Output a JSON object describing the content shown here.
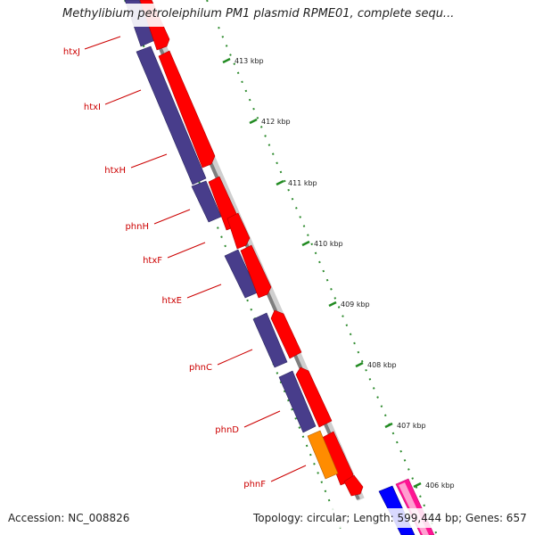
{
  "title": "Methylibium petroleiphilum PM1 plasmid RPME01, complete sequ...",
  "footer": {
    "accession": "Accession: NC_008826",
    "summary": "Topology: circular; Length: 599,444 bp; Genes: 657"
  },
  "colors": {
    "forward_cds": "#ff0000",
    "reverse_cds": "#483d8b",
    "orange_feature": "#ff8c00",
    "blue_feature": "#0000ff",
    "pink_feature": "#ff1493",
    "backbone": "#7f7f7f",
    "tick": "#228b22",
    "gene_label": "#cc0000"
  },
  "ruler": {
    "unit": "kbp",
    "ticks": [
      "413 kbp",
      "412 kbp",
      "411 kbp",
      "410 kbp",
      "409 kbp",
      "408 kbp",
      "407 kbp",
      "406 kbp"
    ]
  },
  "genes": [
    "htxJ",
    "htxI",
    "htxH",
    "phnH",
    "htxF",
    "htxE",
    "phnC",
    "phnD",
    "phnF"
  ]
}
